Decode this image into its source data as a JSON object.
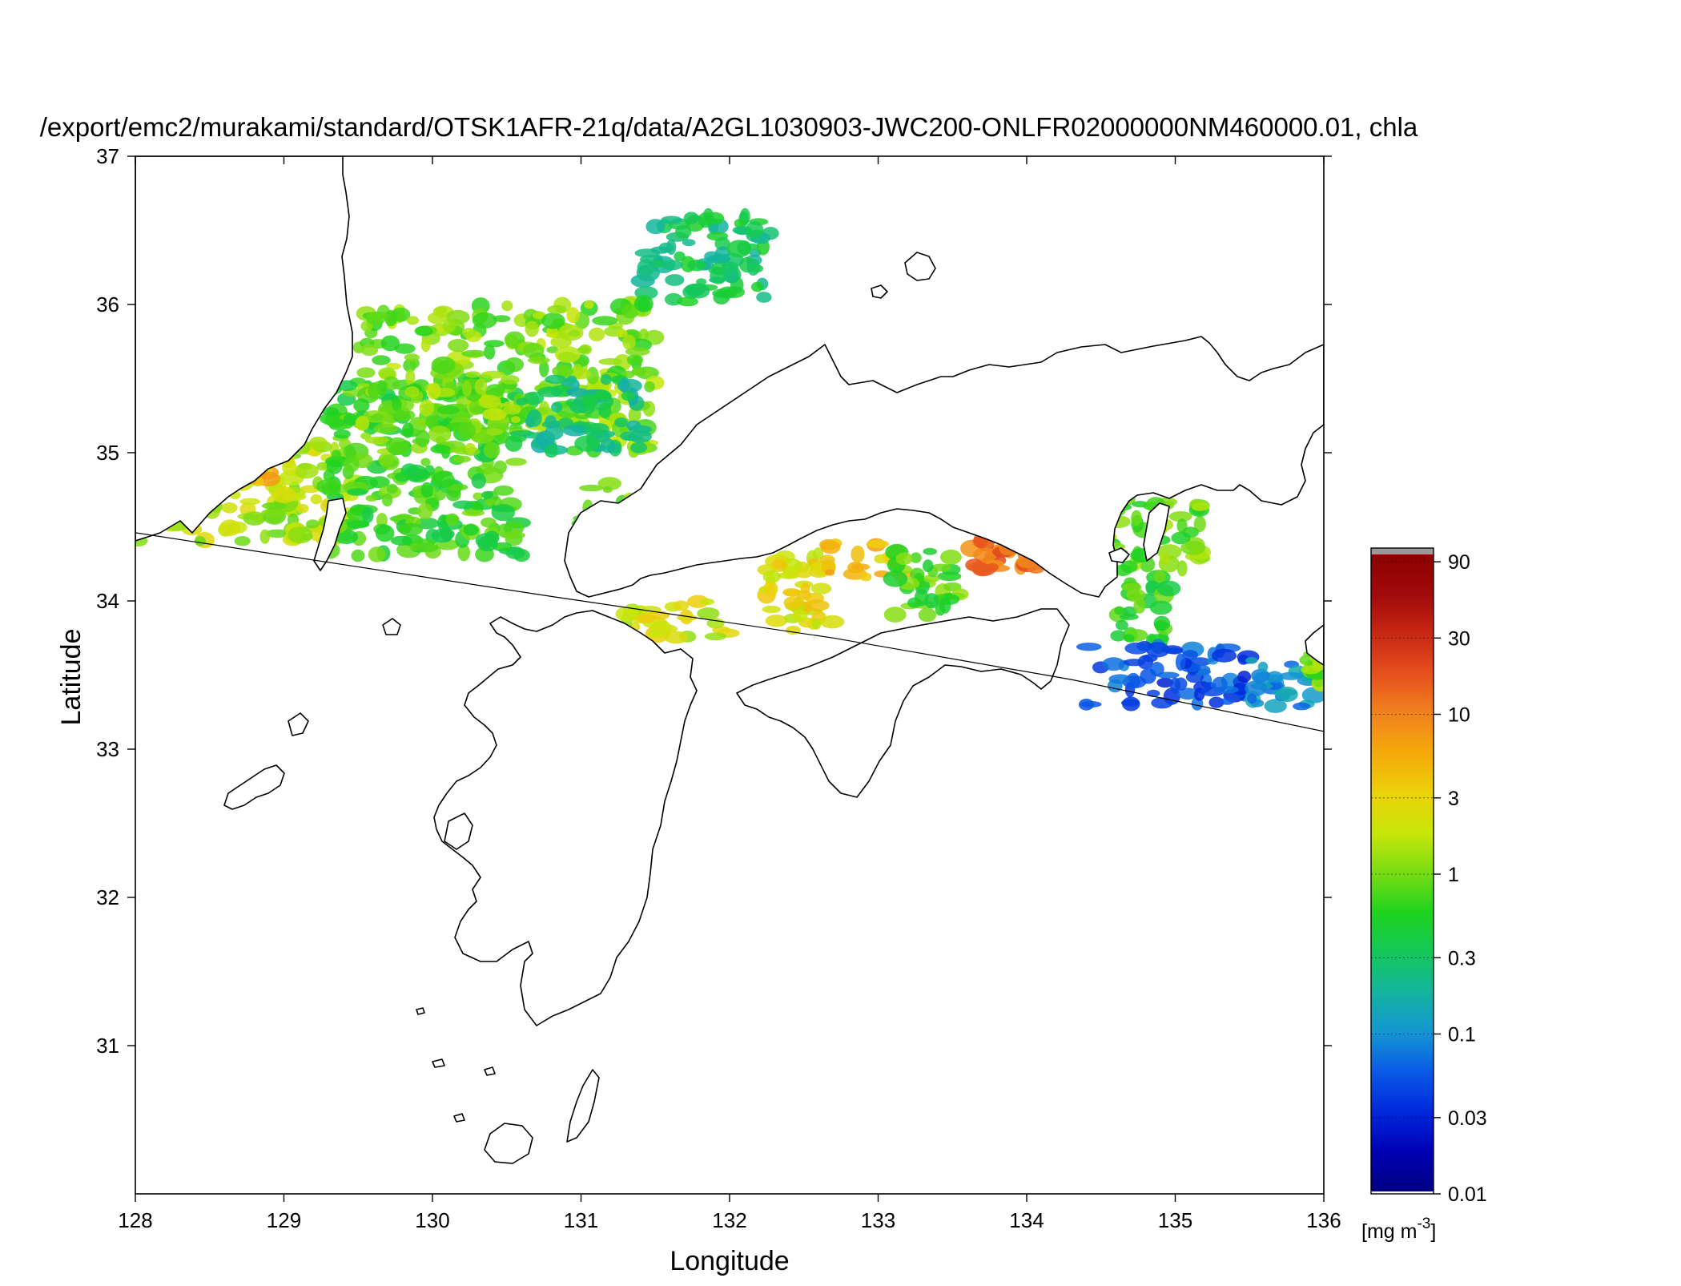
{
  "figure": {
    "title": "/export/emc2/murakami/standard/OTSK1AFR-21q/data/A2GL1030903-JWC200-ONLFR02000000NM460000.01, chla",
    "xlabel": "Longitude",
    "ylabel": "Latitude"
  },
  "map": {
    "projection": "equirectangular",
    "lon_range": [
      128,
      136
    ],
    "lat_range": [
      30.0,
      37
    ],
    "x_ticks": [
      128,
      129,
      130,
      131,
      132,
      133,
      134,
      135,
      136
    ],
    "y_ticks": [
      31,
      32,
      33,
      34,
      35,
      36,
      37
    ],
    "coastline_color": "#000000",
    "land_color": "#ffffff",
    "swath_edge": [
      [
        128.0,
        34.46
      ],
      [
        130.8,
        34.03
      ],
      [
        132.7,
        33.75
      ],
      [
        134.3,
        33.47
      ],
      [
        136.0,
        33.12
      ]
    ]
  },
  "colorbar": {
    "unit_prefix": "[mg m",
    "unit_exp": "-3",
    "unit_suffix": "]",
    "scale": "log",
    "range": [
      0.01,
      100
    ],
    "ticks": [
      "0.01",
      "0.03",
      "0.1",
      "0.3",
      "1",
      "3",
      "10",
      "30",
      "90"
    ],
    "tick_values": [
      0.01,
      0.03,
      0.1,
      0.3,
      1,
      3,
      10,
      30,
      90
    ],
    "colors": [
      "#000080",
      "#0000b4",
      "#0028dc",
      "#0a5ae6",
      "#1496d2",
      "#14b4a0",
      "#14c85a",
      "#1ed21e",
      "#78dc14",
      "#c8e60a",
      "#ebd20a",
      "#f5aa0a",
      "#f0821e",
      "#e6501e",
      "#c82814",
      "#a00a0a",
      "#8c0000"
    ],
    "over_color": "#999999"
  },
  "chart_data": {
    "type": "heatmap",
    "title": "/export/emc2/murakami/standard/OTSK1AFR-21q/data/A2GL1030903-JWC200-ONLFR02000000NM460000.01, chla",
    "xlabel": "Longitude",
    "ylabel": "Latitude",
    "xlim": [
      128,
      136
    ],
    "ylim": [
      30.0,
      37
    ],
    "variable": "chla",
    "units": "mg m-3",
    "colorscale": "log",
    "crange": [
      0.01,
      90
    ],
    "regions": [
      {
        "lon": [
          128.0,
          129.5
        ],
        "lat": [
          34.4,
          35.1
        ],
        "chla": 1.5
      },
      {
        "lon": [
          128.7,
          128.9
        ],
        "lat": [
          34.8,
          35.0
        ],
        "chla": 5
      },
      {
        "lon": [
          129.3,
          130.6
        ],
        "lat": [
          34.3,
          35.5
        ],
        "chla": 0.6
      },
      {
        "lon": [
          129.5,
          131.5
        ],
        "lat": [
          35.0,
          36.0
        ],
        "chla": 1.0
      },
      {
        "lon": [
          130.6,
          131.4
        ],
        "lat": [
          35.0,
          35.5
        ],
        "chla": 0.25
      },
      {
        "lon": [
          131.4,
          132.3
        ],
        "lat": [
          36.0,
          36.6
        ],
        "chla": 0.3
      },
      {
        "lon": [
          131.0,
          131.5
        ],
        "lat": [
          34.5,
          34.8
        ],
        "chla": 0.8
      },
      {
        "lon": [
          131.3,
          132.0
        ],
        "lat": [
          33.75,
          34.0
        ],
        "chla": 2
      },
      {
        "lon": [
          132.2,
          132.7
        ],
        "lat": [
          33.8,
          34.35
        ],
        "chla": 2.5
      },
      {
        "lon": [
          132.6,
          133.2
        ],
        "lat": [
          34.15,
          34.4
        ],
        "chla": 4
      },
      {
        "lon": [
          133.1,
          133.6
        ],
        "lat": [
          33.9,
          34.35
        ],
        "chla": 0.7
      },
      {
        "lon": [
          133.6,
          134.3
        ],
        "lat": [
          34.2,
          34.6
        ],
        "chla": 12
      },
      {
        "lon": [
          134.3,
          135.2
        ],
        "lat": [
          34.2,
          34.7
        ],
        "chla": 0.9
      },
      {
        "lon": [
          134.6,
          135.0
        ],
        "lat": [
          33.7,
          34.2
        ],
        "chla": 0.6
      },
      {
        "lon": [
          134.4,
          135.5
        ],
        "lat": [
          33.3,
          33.7
        ],
        "chla": 0.05
      },
      {
        "lon": [
          135.5,
          136.0
        ],
        "lat": [
          33.2,
          33.6
        ],
        "chla": 0.1
      },
      {
        "lon": [
          135.9,
          136.0
        ],
        "lat": [
          33.4,
          33.7
        ],
        "chla": 1.0
      }
    ]
  }
}
